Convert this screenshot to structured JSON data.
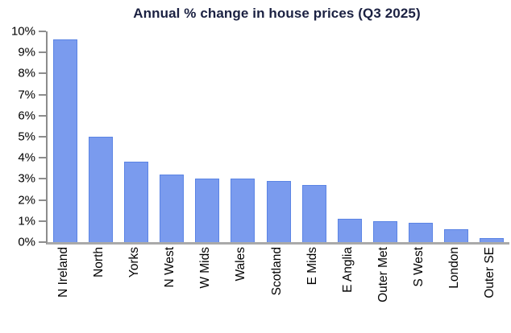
{
  "chart_data": {
    "type": "bar",
    "title": "Annual % change in house prices (Q3 2025)",
    "categories": [
      "N Ireland",
      "North",
      "Yorks",
      "N West",
      "W Mids",
      "Wales",
      "Scotland",
      "E Mids",
      "E Anglia",
      "Outer Met",
      "S West",
      "London",
      "Outer SE"
    ],
    "values": [
      9.6,
      5.0,
      3.8,
      3.2,
      3.0,
      3.0,
      2.9,
      2.7,
      1.1,
      1.0,
      0.9,
      0.6,
      0.2
    ],
    "xlabel": "",
    "ylabel": "",
    "ylim": [
      0,
      10
    ],
    "ytick_labels": [
      "0%",
      "1%",
      "2%",
      "3%",
      "4%",
      "5%",
      "6%",
      "7%",
      "8%",
      "9%",
      "10%"
    ],
    "grid": false,
    "legend_position": "none",
    "colors": {
      "bar_fill": "#7a9bee",
      "bar_border": "#5b84e4",
      "title_text": "#1b2142",
      "axis_line": "#8c8c8c",
      "baseline": "#a9a9a9",
      "tick_mark": "#8c8c8c",
      "tick_text": "#000000",
      "background": "#ffffff"
    }
  }
}
